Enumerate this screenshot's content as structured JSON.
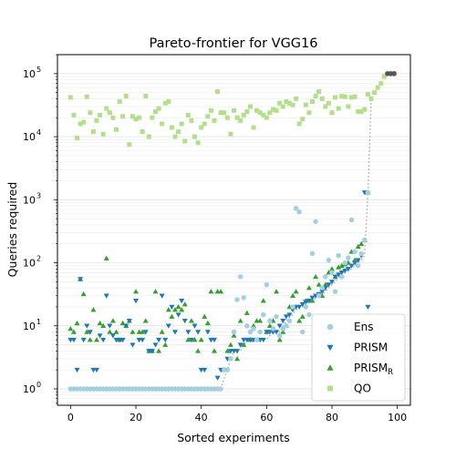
{
  "chart_data": {
    "type": "scatter",
    "title": "Pareto-frontier for VGG16",
    "xlabel": "Sorted experiments",
    "ylabel": "Queries required",
    "xlim": [
      -4,
      104
    ],
    "ylim": [
      0.55,
      200000
    ],
    "yscale": "log",
    "xticks": [
      0,
      20,
      40,
      60,
      80,
      100
    ],
    "yticks": [
      {
        "value": 1,
        "base": "10",
        "exp": "0"
      },
      {
        "value": 10,
        "base": "10",
        "exp": "1"
      },
      {
        "value": 100,
        "base": "10",
        "exp": "2"
      },
      {
        "value": 1000,
        "base": "10",
        "exp": "3"
      },
      {
        "value": 10000,
        "base": "10",
        "exp": "4"
      },
      {
        "value": 100000,
        "base": "10",
        "exp": "5"
      }
    ],
    "grid": "horizontal-minor-light",
    "legend_position": "lower-right",
    "series": [
      {
        "name": "Ens",
        "legend_label": "Ens",
        "marker": "circle",
        "color": "#a6cee3",
        "x": [
          0,
          1,
          2,
          3,
          4,
          5,
          6,
          7,
          8,
          9,
          10,
          11,
          12,
          13,
          14,
          15,
          16,
          17,
          18,
          19,
          20,
          21,
          22,
          23,
          24,
          25,
          26,
          27,
          28,
          29,
          30,
          31,
          32,
          33,
          34,
          35,
          36,
          37,
          38,
          39,
          40,
          41,
          42,
          43,
          44,
          45,
          46,
          47,
          48,
          49,
          50,
          51,
          52,
          53,
          54,
          55,
          56,
          57,
          58,
          59,
          60,
          61,
          62,
          63,
          64,
          65,
          66,
          67,
          68,
          69,
          70,
          71,
          72,
          73,
          74,
          75,
          76,
          77,
          78,
          79,
          80,
          81,
          82,
          83,
          84,
          85,
          86,
          87,
          88,
          89,
          90,
          91
        ],
        "y": [
          1,
          1,
          1,
          1,
          1,
          1,
          1,
          1,
          1,
          1,
          1,
          1,
          1,
          1,
          1,
          1,
          1,
          1,
          1,
          1,
          1,
          1,
          1,
          1,
          1,
          1,
          1,
          1,
          1,
          1,
          1,
          1,
          1,
          1,
          1,
          1,
          1,
          1,
          1,
          1,
          1,
          1,
          1,
          1,
          1,
          1,
          1,
          2,
          2,
          3,
          8,
          26,
          60,
          28,
          10,
          8,
          9,
          6,
          8,
          15,
          45,
          12,
          9,
          14,
          7,
          9,
          10,
          12,
          20,
          730,
          640,
          8,
          20,
          15,
          140,
          450,
          30,
          40,
          60,
          110,
          70,
          35,
          130,
          60,
          100,
          120,
          480,
          150,
          90,
          140,
          230,
          1300
        ]
      },
      {
        "name": "PRISM",
        "legend_label": "PRISM",
        "marker": "triangle-down",
        "color": "#1f78b4",
        "x": [
          0,
          1,
          2,
          3,
          4,
          5,
          6,
          7,
          8,
          9,
          10,
          11,
          12,
          13,
          14,
          15,
          16,
          17,
          18,
          19,
          20,
          21,
          22,
          23,
          24,
          25,
          26,
          27,
          28,
          29,
          30,
          31,
          32,
          33,
          34,
          35,
          36,
          37,
          38,
          39,
          40,
          41,
          42,
          43,
          44,
          45,
          46,
          47,
          48,
          49,
          50,
          51,
          52,
          53,
          54,
          55,
          56,
          57,
          58,
          59,
          60,
          61,
          62,
          63,
          64,
          65,
          66,
          67,
          68,
          69,
          70,
          71,
          72,
          73,
          74,
          75,
          76,
          77,
          78,
          79,
          80,
          81,
          82,
          83,
          84,
          85,
          86,
          87,
          88,
          89,
          90,
          91
        ],
        "y": [
          6,
          6,
          2,
          55,
          6,
          10,
          8,
          2,
          2,
          7,
          6,
          30,
          10,
          7,
          6,
          6,
          6,
          10,
          12,
          5,
          25,
          6,
          6,
          8,
          4,
          4,
          5,
          6,
          30,
          6,
          10,
          20,
          8,
          15,
          25,
          12,
          8,
          6,
          10,
          8,
          2,
          2,
          8,
          6,
          6,
          1.5,
          2,
          2,
          3,
          4,
          4,
          4,
          5,
          6,
          6,
          6,
          6,
          6,
          6,
          6,
          8,
          8,
          8,
          8,
          10,
          12,
          14,
          15,
          18,
          20,
          20,
          22,
          24,
          25,
          28,
          30,
          32,
          35,
          40,
          45,
          50,
          60,
          65,
          70,
          75,
          80,
          90,
          100,
          110,
          130,
          1300,
          20
        ]
      },
      {
        "name": "PRISM_R",
        "legend_label_base": "PRISM",
        "legend_label_sub": "R",
        "marker": "triangle-up",
        "color": "#33a02c",
        "x": [
          0,
          1,
          2,
          3,
          4,
          5,
          6,
          7,
          8,
          9,
          10,
          11,
          12,
          13,
          14,
          15,
          16,
          17,
          18,
          19,
          20,
          21,
          22,
          23,
          24,
          25,
          26,
          27,
          28,
          29,
          30,
          31,
          32,
          33,
          34,
          35,
          36,
          37,
          38,
          39,
          40,
          41,
          42,
          43,
          44,
          45,
          46,
          47,
          48,
          49,
          50,
          51,
          52,
          53,
          54,
          55,
          56,
          57,
          58,
          59,
          60,
          61,
          62,
          63,
          64,
          65,
          66,
          67,
          68,
          69,
          70,
          71,
          72,
          73,
          74,
          75,
          76,
          77,
          78,
          79,
          80,
          81,
          82,
          83,
          84,
          85,
          86,
          87,
          88,
          89,
          90,
          91
        ],
        "y": [
          9,
          8,
          11,
          55,
          32,
          8,
          6,
          18,
          6,
          11,
          10,
          118,
          8,
          12,
          8,
          6,
          11,
          10,
          12,
          8,
          35,
          8,
          8,
          12,
          4,
          4,
          35,
          4,
          8,
          5,
          18,
          14,
          18,
          20,
          18,
          22,
          6,
          12,
          6,
          4,
          6,
          14,
          11,
          35,
          4,
          35,
          35,
          2,
          4,
          5,
          7,
          3,
          12,
          5,
          16,
          6,
          10,
          12,
          12,
          25,
          8,
          10,
          12,
          35,
          6,
          8,
          10,
          20,
          30,
          35,
          12,
          14,
          25,
          40,
          25,
          60,
          45,
          30,
          45,
          70,
          80,
          60,
          85,
          90,
          95,
          100,
          150,
          110,
          180,
          200,
          230,
          1300
        ]
      },
      {
        "name": "QO",
        "legend_label": "QO",
        "marker": "square",
        "color": "#b2df8a",
        "x": [
          0,
          1,
          2,
          3,
          4,
          5,
          6,
          7,
          8,
          9,
          10,
          11,
          12,
          13,
          14,
          15,
          16,
          17,
          18,
          19,
          20,
          21,
          22,
          23,
          24,
          25,
          26,
          27,
          28,
          29,
          30,
          31,
          32,
          33,
          34,
          35,
          36,
          37,
          38,
          39,
          40,
          41,
          42,
          43,
          44,
          45,
          46,
          47,
          48,
          49,
          50,
          51,
          52,
          53,
          54,
          55,
          56,
          57,
          58,
          59,
          60,
          61,
          62,
          63,
          64,
          65,
          66,
          67,
          68,
          69,
          70,
          71,
          72,
          73,
          74,
          75,
          76,
          77,
          78,
          79,
          80,
          81,
          82,
          83,
          84,
          85,
          86,
          87,
          88,
          89,
          90,
          91,
          92,
          93,
          94,
          95,
          96,
          97,
          98,
          99
        ],
        "y": [
          42000,
          22000,
          9500,
          16000,
          17000,
          43000,
          24000,
          12000,
          18000,
          22000,
          11000,
          28000,
          24000,
          20000,
          13000,
          36000,
          21000,
          44000,
          7500,
          21000,
          19000,
          20000,
          12000,
          44000,
          10000,
          20000,
          25000,
          28000,
          16000,
          34000,
          36000,
          14000,
          10000,
          12000,
          16000,
          8500,
          22000,
          18000,
          10000,
          8000,
          14000,
          16000,
          21000,
          26000,
          18000,
          52000,
          24000,
          24000,
          20000,
          11000,
          26000,
          20000,
          18000,
          22000,
          25000,
          30000,
          14000,
          26000,
          24000,
          22000,
          20000,
          24000,
          27000,
          26000,
          34000,
          30000,
          36000,
          34000,
          32000,
          40000,
          16000,
          19000,
          32000,
          24000,
          36000,
          44000,
          52000,
          40000,
          30000,
          34000,
          24000,
          42000,
          28000,
          44000,
          43000,
          30000,
          42000,
          43000,
          25000,
          25000,
          27000,
          47000,
          40000,
          50000,
          60000,
          70000,
          90000,
          100000,
          100000,
          100000
        ]
      },
      {
        "name": "Pareto frontier",
        "marker": "dotted-line",
        "color": "#aaaaaa",
        "x": [
          46,
          47,
          48,
          49,
          50,
          51,
          52,
          53,
          54,
          55,
          56,
          57,
          58,
          59,
          60,
          61,
          62,
          63,
          64,
          65,
          66,
          67,
          68,
          69,
          70,
          71,
          72,
          73,
          74,
          75,
          76,
          77,
          78,
          79,
          80,
          81,
          82,
          83,
          84,
          85,
          86,
          87,
          88,
          89,
          90,
          91,
          92,
          93,
          94,
          95,
          96,
          97,
          98,
          99
        ],
        "y": [
          1,
          1.5,
          2,
          3,
          4,
          4,
          4,
          5,
          6,
          6,
          6,
          6,
          6,
          6,
          6,
          7,
          8,
          8,
          8,
          10,
          12,
          14,
          15,
          18,
          20,
          20,
          22,
          24,
          25,
          28,
          30,
          32,
          35,
          40,
          45,
          50,
          60,
          65,
          70,
          75,
          80,
          90,
          100,
          110,
          130,
          1300,
          40000,
          50000,
          60000,
          70000,
          90000,
          100000,
          100000,
          100000
        ]
      },
      {
        "name": "Endpoints",
        "marker": "circle",
        "color": "#555555",
        "x": [
          97,
          98,
          99
        ],
        "y": [
          100000,
          100000,
          100000
        ]
      }
    ]
  }
}
